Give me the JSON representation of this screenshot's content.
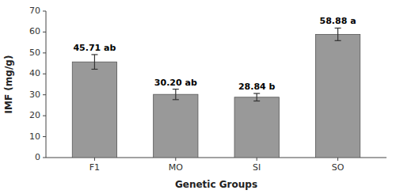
{
  "chart_data": {
    "type": "bar",
    "categories": [
      "F1",
      "MO",
      "SI",
      "SO"
    ],
    "values": [
      45.71,
      30.2,
      28.84,
      58.88
    ],
    "errors": [
      3.5,
      2.5,
      1.8,
      3.0
    ],
    "value_labels": [
      "45.71 ab",
      "30.20 ab",
      "28.84 b",
      "58.88 a"
    ],
    "data_labels": true,
    "color": "#999999",
    "xlabel": "Genetic Groups",
    "ylabel": "IMF (mg/g)",
    "ylim": [
      0,
      70
    ],
    "yticks": [
      0,
      10,
      20,
      30,
      40,
      50,
      60,
      70
    ],
    "grid": false
  }
}
